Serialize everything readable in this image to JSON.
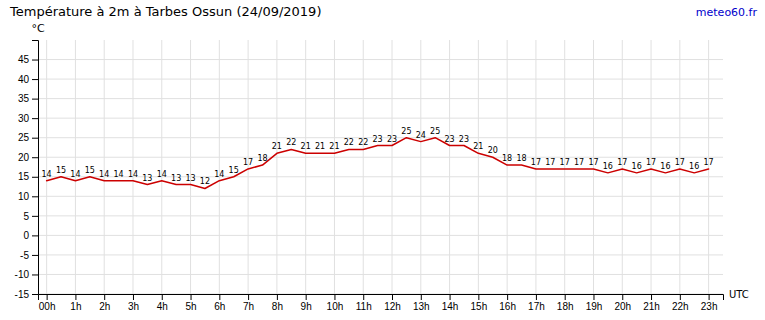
{
  "chart_data": {
    "type": "line",
    "title": "Température à 2m à Tarbes Ossun (24/09/2019)",
    "x_label": "UTC",
    "y_label": "°C",
    "annotations": [
      {
        "text": "meteo60.fr",
        "color": "#0000cc"
      }
    ],
    "x": [
      0,
      0.5,
      1,
      1.5,
      2,
      2.5,
      3,
      3.5,
      4,
      4.5,
      5,
      5.5,
      6,
      6.5,
      7,
      7.5,
      8,
      8.5,
      9,
      9.5,
      10,
      10.5,
      11,
      11.5,
      12,
      12.5,
      13,
      13.5,
      14,
      14.5,
      15,
      15.5,
      16,
      16.5,
      17,
      17.5,
      18,
      18.5,
      19,
      19.5,
      20,
      20.5,
      21,
      21.5,
      22,
      22.5,
      23
    ],
    "values": [
      14,
      15,
      14,
      15,
      14,
      14,
      14,
      13,
      14,
      13,
      13,
      12,
      14,
      15,
      17,
      18,
      21,
      22,
      21,
      21,
      21,
      22,
      22,
      23,
      23,
      25,
      24,
      25,
      23,
      23,
      21,
      20,
      18,
      18,
      17,
      17,
      17,
      17,
      17,
      16,
      17,
      16,
      17,
      16,
      17,
      16,
      17
    ],
    "color": "#cc0000",
    "data_labels": true,
    "grid": true,
    "xlim": [
      -0.3,
      23.5
    ],
    "xticks": [
      {
        "value": 0,
        "label": "00h"
      },
      {
        "value": 1,
        "label": "1h"
      },
      {
        "value": 2,
        "label": "2h"
      },
      {
        "value": 3,
        "label": "3h"
      },
      {
        "value": 4,
        "label": "4h"
      },
      {
        "value": 5,
        "label": "5h"
      },
      {
        "value": 6,
        "label": "6h"
      },
      {
        "value": 7,
        "label": "7h"
      },
      {
        "value": 8,
        "label": "8h"
      },
      {
        "value": 9,
        "label": "9h"
      },
      {
        "value": 10,
        "label": "10h"
      },
      {
        "value": 11,
        "label": "11h"
      },
      {
        "value": 12,
        "label": "12h"
      },
      {
        "value": 13,
        "label": "13h"
      },
      {
        "value": 14,
        "label": "14h"
      },
      {
        "value": 15,
        "label": "15h"
      },
      {
        "value": 16,
        "label": "16h"
      },
      {
        "value": 17,
        "label": "17h"
      },
      {
        "value": 18,
        "label": "18h"
      },
      {
        "value": 19,
        "label": "19h"
      },
      {
        "value": 20,
        "label": "20h"
      },
      {
        "value": 21,
        "label": "21h"
      },
      {
        "value": 22,
        "label": "22h"
      },
      {
        "value": 23,
        "label": "23h"
      }
    ],
    "ylim": [
      -15,
      50
    ],
    "yticks": [
      -15,
      -10,
      -5,
      0,
      5,
      10,
      15,
      20,
      25,
      30,
      35,
      40,
      45
    ]
  }
}
